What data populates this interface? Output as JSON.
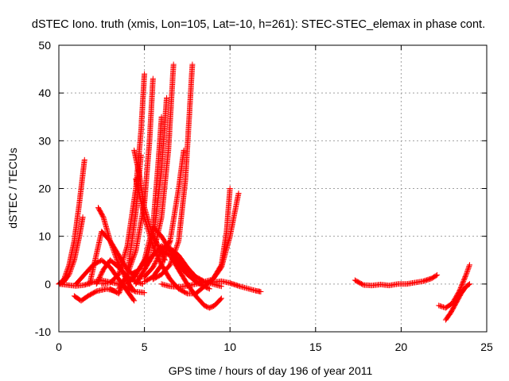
{
  "chart_data": {
    "type": "scatter",
    "title": "dSTEC Iono. truth (xmis, Lon=105, Lat=-10, h=261): STEC-STEC_elemax in phase cont.",
    "xlabel": "GPS time / hours of day 196 of year 2011",
    "ylabel": "dSTEC  / TECUs",
    "xlim": [
      0,
      25
    ],
    "ylim": [
      -10,
      50
    ],
    "x_ticks": [
      "0",
      "5",
      "10",
      "15",
      "20",
      "25"
    ],
    "y_ticks": [
      "-10",
      "0",
      "10",
      "20",
      "30",
      "40",
      "50"
    ],
    "x_tick_values": [
      0,
      5,
      10,
      15,
      20,
      25
    ],
    "y_tick_values": [
      -10,
      0,
      10,
      20,
      30,
      40,
      50
    ],
    "grid": true,
    "marker": "+",
    "color": "#ff0000",
    "series": [
      {
        "x": [
          0.0,
          0.3,
          0.6,
          0.9,
          1.2,
          1.5
        ],
        "y": [
          0.0,
          1.0,
          4.0,
          9.0,
          17.0,
          26.0
        ]
      },
      {
        "x": [
          0.0,
          0.3,
          0.6,
          0.9,
          1.2,
          1.4
        ],
        "y": [
          0.0,
          0.5,
          2.0,
          5.0,
          10.0,
          14.0
        ]
      },
      {
        "x": [
          0.0,
          0.5,
          1.0,
          1.5,
          2.0,
          2.5,
          3.0,
          3.5,
          4.0,
          4.5,
          5.0
        ],
        "y": [
          0.0,
          -0.2,
          -0.4,
          -0.2,
          0.4,
          0.8,
          0.4,
          0.0,
          -0.8,
          -1.6,
          -1.8
        ]
      },
      {
        "x": [
          0.9,
          1.3,
          1.7,
          2.2,
          2.8,
          3.3
        ],
        "y": [
          -2.5,
          -3.5,
          -2.5,
          -1.5,
          -1.0,
          -1.5
        ]
      },
      {
        "x": [
          2.3,
          2.6,
          3.0,
          3.4,
          3.8,
          4.1,
          4.3
        ],
        "y": [
          16.0,
          14.0,
          9.0,
          5.0,
          2.0,
          0.0,
          -1.0
        ]
      },
      {
        "x": [
          1.0,
          1.5,
          2.0,
          2.5,
          3.0,
          3.5,
          4.0,
          4.4
        ],
        "y": [
          0.0,
          2.0,
          4.0,
          5.0,
          3.5,
          1.0,
          -1.5,
          -3.5
        ]
      },
      {
        "x": [
          2.2,
          2.6,
          3.0,
          3.5,
          4.0,
          4.5,
          4.9
        ],
        "y": [
          0.0,
          3.0,
          5.0,
          3.5,
          1.5,
          0.5,
          0.0
        ]
      },
      {
        "x": [
          1.8,
          2.5,
          3.0,
          3.5,
          4.0,
          4.5,
          5.0,
          5.5,
          6.0,
          6.5
        ],
        "y": [
          0.0,
          11.0,
          9.0,
          6.0,
          3.0,
          1.5,
          1.5,
          3.5,
          7.0,
          9.0
        ]
      },
      {
        "x": [
          2.5,
          3.0,
          3.5,
          4.0,
          4.5,
          4.8,
          5.0
        ],
        "y": [
          0.0,
          0.3,
          2.0,
          8.0,
          20.0,
          32.0,
          44.0
        ]
      },
      {
        "x": [
          3.0,
          3.5,
          4.0,
          4.5,
          4.8
        ],
        "y": [
          -1.0,
          -2.0,
          2.0,
          15.0,
          27.0
        ]
      },
      {
        "x": [
          3.5,
          4.0,
          4.5,
          5.0,
          5.3,
          5.5
        ],
        "y": [
          -1.0,
          2.0,
          7.0,
          17.0,
          30.0,
          43.0
        ]
      },
      {
        "x": [
          4.0,
          4.5,
          5.0,
          5.5,
          5.8,
          6.0
        ],
        "y": [
          0.0,
          2.0,
          5.0,
          12.0,
          25.0,
          35.0
        ]
      },
      {
        "x": [
          4.2,
          4.7,
          5.2,
          5.6,
          6.0,
          6.3
        ],
        "y": [
          2.0,
          3.0,
          6.0,
          12.0,
          24.0,
          39.0
        ]
      },
      {
        "x": [
          4.5,
          5.0,
          5.5,
          6.0,
          6.4,
          6.7
        ],
        "y": [
          0.0,
          3.0,
          6.0,
          14.0,
          28.0,
          46.0
        ]
      },
      {
        "x": [
          4.4,
          4.7,
          5.0,
          5.4,
          5.8,
          6.2
        ],
        "y": [
          28.0,
          23.0,
          16.0,
          11.0,
          8.0,
          5.0
        ]
      },
      {
        "x": [
          5.0,
          5.5,
          6.0,
          6.5,
          7.0,
          7.3
        ],
        "y": [
          0.5,
          1.5,
          4.0,
          9.0,
          20.0,
          28.0
        ]
      },
      {
        "x": [
          5.5,
          6.0,
          6.5,
          7.0,
          7.4,
          7.8
        ],
        "y": [
          1.0,
          2.0,
          4.0,
          9.0,
          22.0,
          46.0
        ]
      },
      {
        "x": [
          4.5,
          5.0,
          5.5,
          6.0,
          6.5,
          7.0,
          7.5,
          8.0,
          8.5,
          9.0,
          9.5,
          10.0,
          10.5
        ],
        "y": [
          22.0,
          14.0,
          8.0,
          4.0,
          1.0,
          -1.0,
          -2.0,
          -2.0,
          -0.5,
          1.0,
          3.5,
          10.0,
          19.0
        ]
      },
      {
        "x": [
          5.0,
          5.5,
          6.0,
          6.5,
          7.0,
          7.5,
          8.0,
          8.5,
          9.0,
          9.5,
          9.8,
          10.0
        ],
        "y": [
          4.0,
          6.0,
          8.0,
          7.0,
          5.0,
          3.0,
          1.5,
          0.5,
          1.0,
          4.0,
          11.0,
          20.0
        ]
      },
      {
        "x": [
          5.5,
          6.0,
          6.5,
          7.0,
          7.5,
          8.0,
          8.5,
          8.8
        ],
        "y": [
          12.0,
          10.0,
          7.0,
          4.0,
          2.0,
          0.5,
          -0.5,
          -1.0
        ]
      },
      {
        "x": [
          6.0,
          6.5,
          7.0,
          7.5,
          8.0,
          8.5,
          9.0,
          9.5,
          10.0,
          10.5,
          11.0,
          11.5,
          11.8
        ],
        "y": [
          0.0,
          -0.5,
          -0.6,
          -0.4,
          0.0,
          0.3,
          0.4,
          0.6,
          0.2,
          -0.4,
          -0.9,
          -1.4,
          -1.6
        ]
      },
      {
        "x": [
          6.0,
          6.5,
          7.0,
          7.5,
          8.0,
          8.5,
          8.8,
          9.1,
          9.5
        ],
        "y": [
          7.0,
          6.0,
          3.0,
          0.0,
          -2.5,
          -4.5,
          -5.0,
          -4.5,
          -3.0
        ]
      },
      {
        "x": [
          6.5,
          7.0,
          7.5,
          8.0,
          8.5,
          9.0,
          9.5
        ],
        "y": [
          7.5,
          6.0,
          3.5,
          1.5,
          0.5,
          0.0,
          -0.5
        ]
      },
      {
        "x": [
          17.3,
          17.8,
          18.3,
          18.8,
          19.3,
          19.8,
          20.3,
          20.8,
          21.3,
          21.8,
          22.1
        ],
        "y": [
          0.8,
          -0.2,
          -0.3,
          -0.1,
          -0.3,
          0.0,
          0.0,
          0.3,
          0.6,
          1.2,
          1.9
        ]
      },
      {
        "x": [
          22.2,
          22.6,
          23.0,
          23.4,
          23.8,
          24.0
        ],
        "y": [
          -4.5,
          -5.0,
          -4.0,
          -1.5,
          2.0,
          4.0
        ]
      },
      {
        "x": [
          22.6,
          22.9,
          23.2,
          23.5,
          23.8,
          24.0
        ],
        "y": [
          -7.5,
          -6.0,
          -4.0,
          -2.0,
          -0.5,
          0.0
        ]
      }
    ]
  }
}
